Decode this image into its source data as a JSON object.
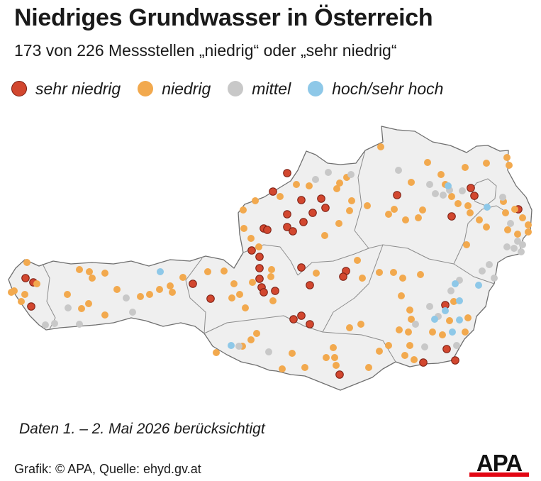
{
  "title": "Niedriges Grundwasser in Österreich",
  "subtitle": "173 von 226 Messstellen „niedrig“ oder „sehr niedrig“",
  "legend": [
    {
      "key": "sn",
      "label": "sehr niedrig",
      "color": "#d2472f",
      "stroke": "#7a1e12"
    },
    {
      "key": "n",
      "label": "niedrig",
      "color": "#f2a94e",
      "stroke": "#f2a94e"
    },
    {
      "key": "m",
      "label": "mittel",
      "color": "#c8c8c8",
      "stroke": "#c8c8c8"
    },
    {
      "key": "h",
      "label": "hoch/sehr hoch",
      "color": "#8ec8e8",
      "stroke": "#8ec8e8"
    }
  ],
  "map_region": "Österreich",
  "note": "Daten 1. – 2. Mai 2026 berücksichtigt",
  "credit": "Grafik: © APA, Quelle: ehyd.gv.at",
  "logo": {
    "text": "APA",
    "color": "#111111",
    "accent": "#e30613"
  },
  "colors": {
    "land": "#efefef",
    "border": "#6f6f6f",
    "inner_border": "#8c8c8c"
  }
}
